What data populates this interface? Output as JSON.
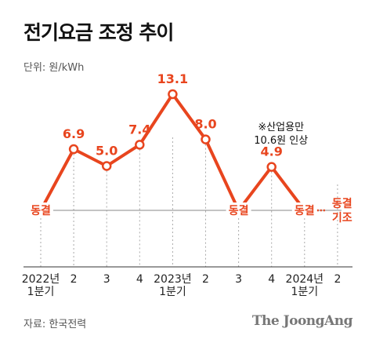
{
  "header": {
    "title": "전기요금 조정 추이",
    "unit": "단위: 원/kWh"
  },
  "footer": {
    "source": "자료: 한국전력",
    "brand": "The JoongAng"
  },
  "chart_data": {
    "type": "line",
    "title": "전기요금 조정 추이",
    "ylabel": "단위: 원/kWh",
    "x_ticks": [
      [
        "2022년",
        "1분기"
      ],
      [
        "2"
      ],
      [
        "3"
      ],
      [
        "4"
      ],
      [
        "2023년",
        "1분기"
      ],
      [
        "2"
      ],
      [
        "3"
      ],
      [
        "4"
      ],
      [
        "2024년",
        "1분기"
      ],
      [
        "2"
      ]
    ],
    "baseline": 0,
    "ylim": [
      0,
      13.1
    ],
    "grid": "vertical dashed",
    "points": [
      {
        "value": 0,
        "label": "동결"
      },
      {
        "value": 6.9,
        "label": "6.9"
      },
      {
        "value": 5.0,
        "label": "5.0"
      },
      {
        "value": 7.4,
        "label": "7.4"
      },
      {
        "value": 13.1,
        "label": "13.1"
      },
      {
        "value": 8.0,
        "label": "8.0"
      },
      {
        "value": 0,
        "label": "동결"
      },
      {
        "value": 4.9,
        "label": "4.9"
      },
      {
        "value": 0,
        "label": "동결"
      }
    ],
    "frozen_label": [
      "동결",
      "기조"
    ],
    "annotation": [
      "※산업용만",
      "10.6원 인상"
    ],
    "colors": {
      "line": "#e8451e",
      "baseline": "#888888",
      "grid": "#aaaaaa"
    }
  }
}
